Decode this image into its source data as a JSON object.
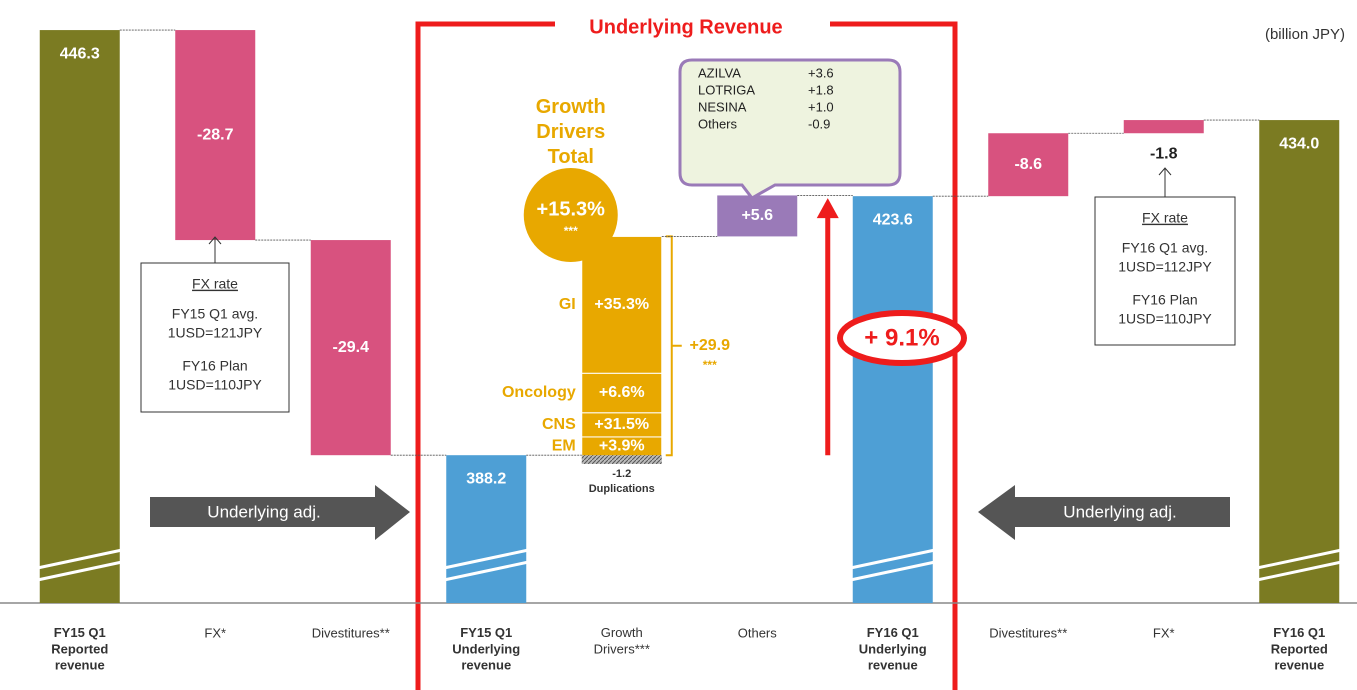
{
  "chart_data": {
    "type": "waterfall",
    "title": "Underlying Revenue",
    "unit": "(billion JPY)",
    "categories": [
      "FY15 Q1\nReported\nrevenue",
      "FX*",
      "Divestitures**",
      "FY15 Q1\nUnderlying\nrevenue",
      "Growth\nDrivers***",
      "Others",
      "FY16 Q1\nUnderlying\nrevenue",
      "Divestitures**",
      "FX*",
      "FY16 Q1\nReported\nrevenue"
    ],
    "values": [
      446.3,
      -28.7,
      -29.4,
      388.2,
      29.9,
      5.6,
      423.6,
      -8.6,
      -1.8,
      434.0
    ],
    "value_labels": [
      "446.3",
      "-28.7",
      "-29.4",
      "388.2",
      "+29.9",
      "+5.6",
      "423.6",
      "-8.6",
      "-1.8",
      "434.0"
    ],
    "measures": [
      "absolute",
      "relative",
      "relative",
      "absolute",
      "stacked",
      "relative",
      "absolute",
      "inverse",
      "inverse",
      "absolute"
    ],
    "colors": [
      "#7b7b22",
      "#d8527f",
      "#d8527f",
      "#4e9fd5",
      "#e8a800",
      "#9a7ab8",
      "#4e9fd5",
      "#d8527f",
      "#d8527f",
      "#7b7b22"
    ],
    "ylim": [
      368,
      450
    ],
    "growth_title": "Growth\nDrivers\nTotal",
    "growth_rate": "+15.3%",
    "growth_rate_note": "***",
    "bracket_note": "***",
    "segments": [
      {
        "name": "GI",
        "growth": "+35.3%",
        "value": 18.7
      },
      {
        "name": "Oncology",
        "growth": "+6.6%",
        "value": 5.4
      },
      {
        "name": "CNS",
        "growth": "+31.5%",
        "value": 3.3
      },
      {
        "name": "EM",
        "growth": "+3.9%",
        "value": 3.7
      }
    ],
    "duplications": {
      "value": -1.2,
      "label": "Duplications"
    },
    "others_breakdown": [
      {
        "name": "AZILVA",
        "value": "+3.6"
      },
      {
        "name": "LOTRIGA",
        "value": "+1.8"
      },
      {
        "name": "NESINA",
        "value": "+1.0"
      },
      {
        "name": "Others",
        "value": "-0.9"
      }
    ],
    "underlying_growth": "+ 9.1%",
    "fx_boxes": [
      {
        "heading": "FX rate",
        "lines": [
          "FY15 Q1 avg.",
          "1USD=121JPY",
          "FY16 Plan",
          "1USD=110JPY"
        ]
      },
      {
        "heading": "FX rate",
        "lines": [
          "FY16 Q1 avg.",
          "1USD=112JPY",
          "FY16 Plan",
          "1USD=110JPY"
        ]
      }
    ],
    "adjustments": [
      "Underlying adj.",
      "Underlying adj."
    ]
  }
}
